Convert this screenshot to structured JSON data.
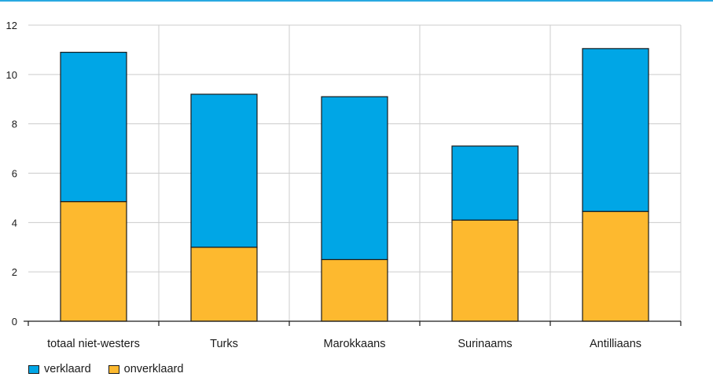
{
  "colors": {
    "top_rule": "#29a9e1",
    "grid": "#cccccc",
    "axis": "#1a1a1a",
    "verklaard": "#00a6e6",
    "onverklaard": "#fdb92f"
  },
  "chart_data": {
    "type": "bar",
    "stacked": true,
    "categories": [
      "totaal niet-westers",
      "Turks",
      "Marokkaans",
      "Surinaams",
      "Antilliaans"
    ],
    "series": [
      {
        "name": "onverklaard",
        "values": [
          4.85,
          3.0,
          2.5,
          4.1,
          4.45
        ]
      },
      {
        "name": "verklaard",
        "values": [
          6.05,
          6.2,
          6.6,
          3.0,
          6.6
        ]
      }
    ],
    "ylim": [
      0,
      12
    ],
    "yticks": [
      "0",
      "2",
      "4",
      "6",
      "8",
      "10",
      "12"
    ],
    "grid": true,
    "legend_placement": "bottom-left",
    "title": "",
    "xlabel": "",
    "ylabel": ""
  },
  "legend": {
    "items": [
      {
        "label": "verklaard"
      },
      {
        "label": "onverklaard"
      }
    ]
  }
}
